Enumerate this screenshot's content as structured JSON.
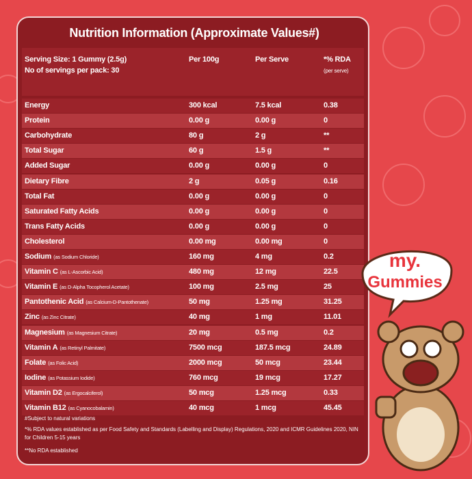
{
  "title": "Nutrition Information (Approximate Values#)",
  "header": {
    "serving_size": "Serving Size: 1 Gummy (2.5g)",
    "servings_per_pack": "No of servings per pack: 30",
    "col_per100": "Per 100g",
    "col_serve": "Per Serve",
    "col_rda": "*% RDA",
    "col_rda_note": "(per serve)"
  },
  "rows": [
    {
      "name": "Energy",
      "per100": "300 kcal",
      "serve": "7.5 kcal",
      "rda": "0.38"
    },
    {
      "name": "Protein",
      "per100": "0.00 g",
      "serve": "0.00 g",
      "rda": "0"
    },
    {
      "name": "Carbohydrate",
      "per100": "80 g",
      "serve": "2 g",
      "rda": "**"
    },
    {
      "name": "Total Sugar",
      "per100": "60 g",
      "serve": "1.5 g",
      "rda": "**"
    },
    {
      "name": "Added Sugar",
      "per100": "0.00 g",
      "serve": "0.00 g",
      "rda": "0"
    },
    {
      "name": "Dietary Fibre",
      "per100": "2 g",
      "serve": "0.05 g",
      "rda": "0.16"
    },
    {
      "name": "Total Fat",
      "per100": "0.00 g",
      "serve": "0.00 g",
      "rda": "0"
    },
    {
      "name": "Saturated Fatty Acids",
      "per100": "0.00 g",
      "serve": "0.00 g",
      "rda": "0"
    },
    {
      "name": "Trans Fatty Acids",
      "per100": "0.00 g",
      "serve": "0.00 g",
      "rda": "0"
    },
    {
      "name": "Cholesterol",
      "per100": "0.00 mg",
      "serve": "0.00 mg",
      "rda": "0"
    },
    {
      "name": "Sodium",
      "note": "(as Sodium Chloride)",
      "per100": "160 mg",
      "serve": "4 mg",
      "rda": "0.2"
    },
    {
      "name": "Vitamin C",
      "note": "(as L-Ascorbic Acid)",
      "per100": "480 mg",
      "serve": "12 mg",
      "rda": "22.5"
    },
    {
      "name": "Vitamin E",
      "note": "(as D-Alpha Tocopherol Acetate)",
      "per100": "100 mg",
      "serve": "2.5 mg",
      "rda": "25"
    },
    {
      "name": "Pantothenic Acid",
      "note": "(as Calcium-D-Pantothenate)",
      "per100": "50 mg",
      "serve": "1.25 mg",
      "rda": "31.25"
    },
    {
      "name": "Zinc",
      "note": "(as Zinc Citrate)",
      "per100": "40 mg",
      "serve": "1 mg",
      "rda": "11.01"
    },
    {
      "name": "Magnesium",
      "note": "(as Magnesium Citrate)",
      "per100": "20 mg",
      "serve": "0.5 mg",
      "rda": "0.2"
    },
    {
      "name": "Vitamin A",
      "note": "(as Retinyl Palmitate)",
      "per100": "7500 mcg",
      "serve": "187.5 mcg",
      "rda": "24.89"
    },
    {
      "name": "Folate",
      "note": "(as Folic Acid)",
      "per100": "2000 mcg",
      "serve": "50 mcg",
      "rda": "23.44"
    },
    {
      "name": "Iodine",
      "note": "(as Potassium Iodide)",
      "per100": "760 mcg",
      "serve": "19 mcg",
      "rda": "17.27"
    },
    {
      "name": "Vitamin D2",
      "note": "(as Ergocalciferol)",
      "per100": "50 mcg",
      "serve": "1.25 mcg",
      "rda": "0.33"
    },
    {
      "name": "Vitamin B12",
      "note": "(as Cyanocobalamin)",
      "per100": "40 mcg",
      "serve": "1 mcg",
      "rda": "45.45"
    }
  ],
  "footnotes": [
    "#Subject to natural variations",
    "*% RDA values established as per Food Safety and Standards (Labelling and Display) Regulations, 2020 and ICMR Guidelines 2020, NIN for Children 5-15 years",
    "**No RDA established"
  ],
  "logo": {
    "line1": "my.",
    "line2": "Gummies"
  }
}
